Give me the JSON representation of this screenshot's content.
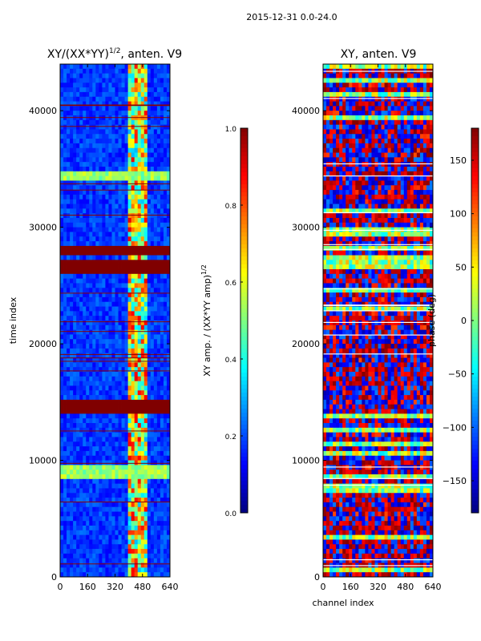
{
  "suptitle": "2015-12-31 0.0-24.0",
  "colors": {
    "jet": [
      "#00007f",
      "#0000ff",
      "#007fff",
      "#00ffff",
      "#7fff7f",
      "#ffff00",
      "#ff7f00",
      "#ff0000",
      "#7f0000"
    ]
  },
  "chart_data": [
    {
      "type": "heatmap",
      "title_main": "XY/(XX*YY)",
      "title_sup": "1/2",
      "title_rest": ", anten. V9",
      "xlabel": "",
      "ylabel": "time index",
      "x_ticks": [
        0,
        160,
        320,
        480,
        640
      ],
      "y_ticks": [
        0,
        10000,
        20000,
        30000,
        40000
      ],
      "xlim": [
        0,
        640
      ],
      "ylim": [
        0,
        44000
      ],
      "value_description": "normalized XY amplitude; mostly low (~0.1), bright band at channels 400-500",
      "saturated_time_bands": [
        [
          14000,
          15000
        ],
        [
          25800,
          27000
        ],
        [
          27800,
          28400
        ]
      ],
      "bright_time_rows": [
        9000,
        34400
      ],
      "bright_channel_range": [
        400,
        500
      ],
      "colorbar": {
        "label": "XY amp. / (XX*YY amp)",
        "label_sup": "1/2",
        "ticks": [
          "0.0",
          "0.2",
          "0.4",
          "0.6",
          "0.8",
          "1.0"
        ],
        "range": [
          0.0,
          1.0
        ]
      }
    },
    {
      "type": "heatmap",
      "title_main": "XY, anten. V9",
      "xlabel": "channel index",
      "ylabel": "",
      "x_ticks": [
        0,
        160,
        320,
        480,
        640
      ],
      "y_ticks": [
        0,
        10000,
        20000,
        30000,
        40000
      ],
      "xlim": [
        0,
        640
      ],
      "ylim": [
        0,
        44000
      ],
      "value_description": "XY phase in degrees; mixture of red (~+180) and blue (~-180) regions with green/yellow bands",
      "colorbar": {
        "label": "phase (deg)",
        "ticks": [
          "−150",
          "−100",
          "−50",
          "0",
          "50",
          "100",
          "150"
        ],
        "range": [
          -180,
          180
        ]
      }
    }
  ]
}
